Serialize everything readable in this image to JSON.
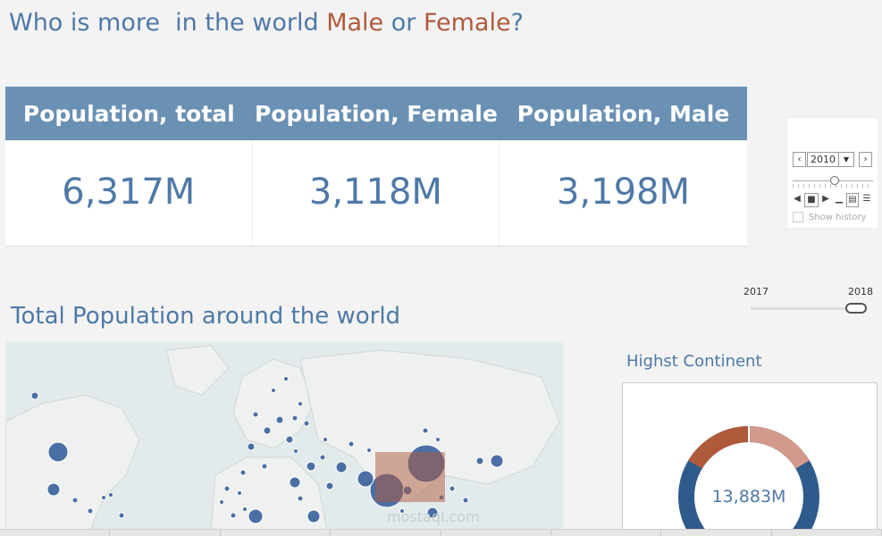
{
  "header": {
    "title_part1": "Who is more  in the world ",
    "title_male": "Male",
    "title_or": " or ",
    "title_female": "Female",
    "title_end": "?"
  },
  "kpi": {
    "headers": [
      "Population, total",
      "Population, Female",
      "Population, Male"
    ],
    "values": [
      "6,317M",
      "3,118M",
      "3,198M"
    ]
  },
  "player": {
    "prev_icon": "chevron-left-icon",
    "next_icon": "chevron-right-icon",
    "year": "2010",
    "show_history": "Show history"
  },
  "range_filter": {
    "min_label": "2017",
    "max_label": "2018"
  },
  "map_section": {
    "title": "Total Population around the world",
    "watermark": "mostaql.com"
  },
  "continent": {
    "title": "Highst Continent",
    "center_value": "13,883M"
  },
  "colors": {
    "accent_blue": "#4e79a7",
    "header_blue": "#6a91b4",
    "accent_red": "#b05a3c",
    "bubble_blue": "#4a6fa5"
  }
}
